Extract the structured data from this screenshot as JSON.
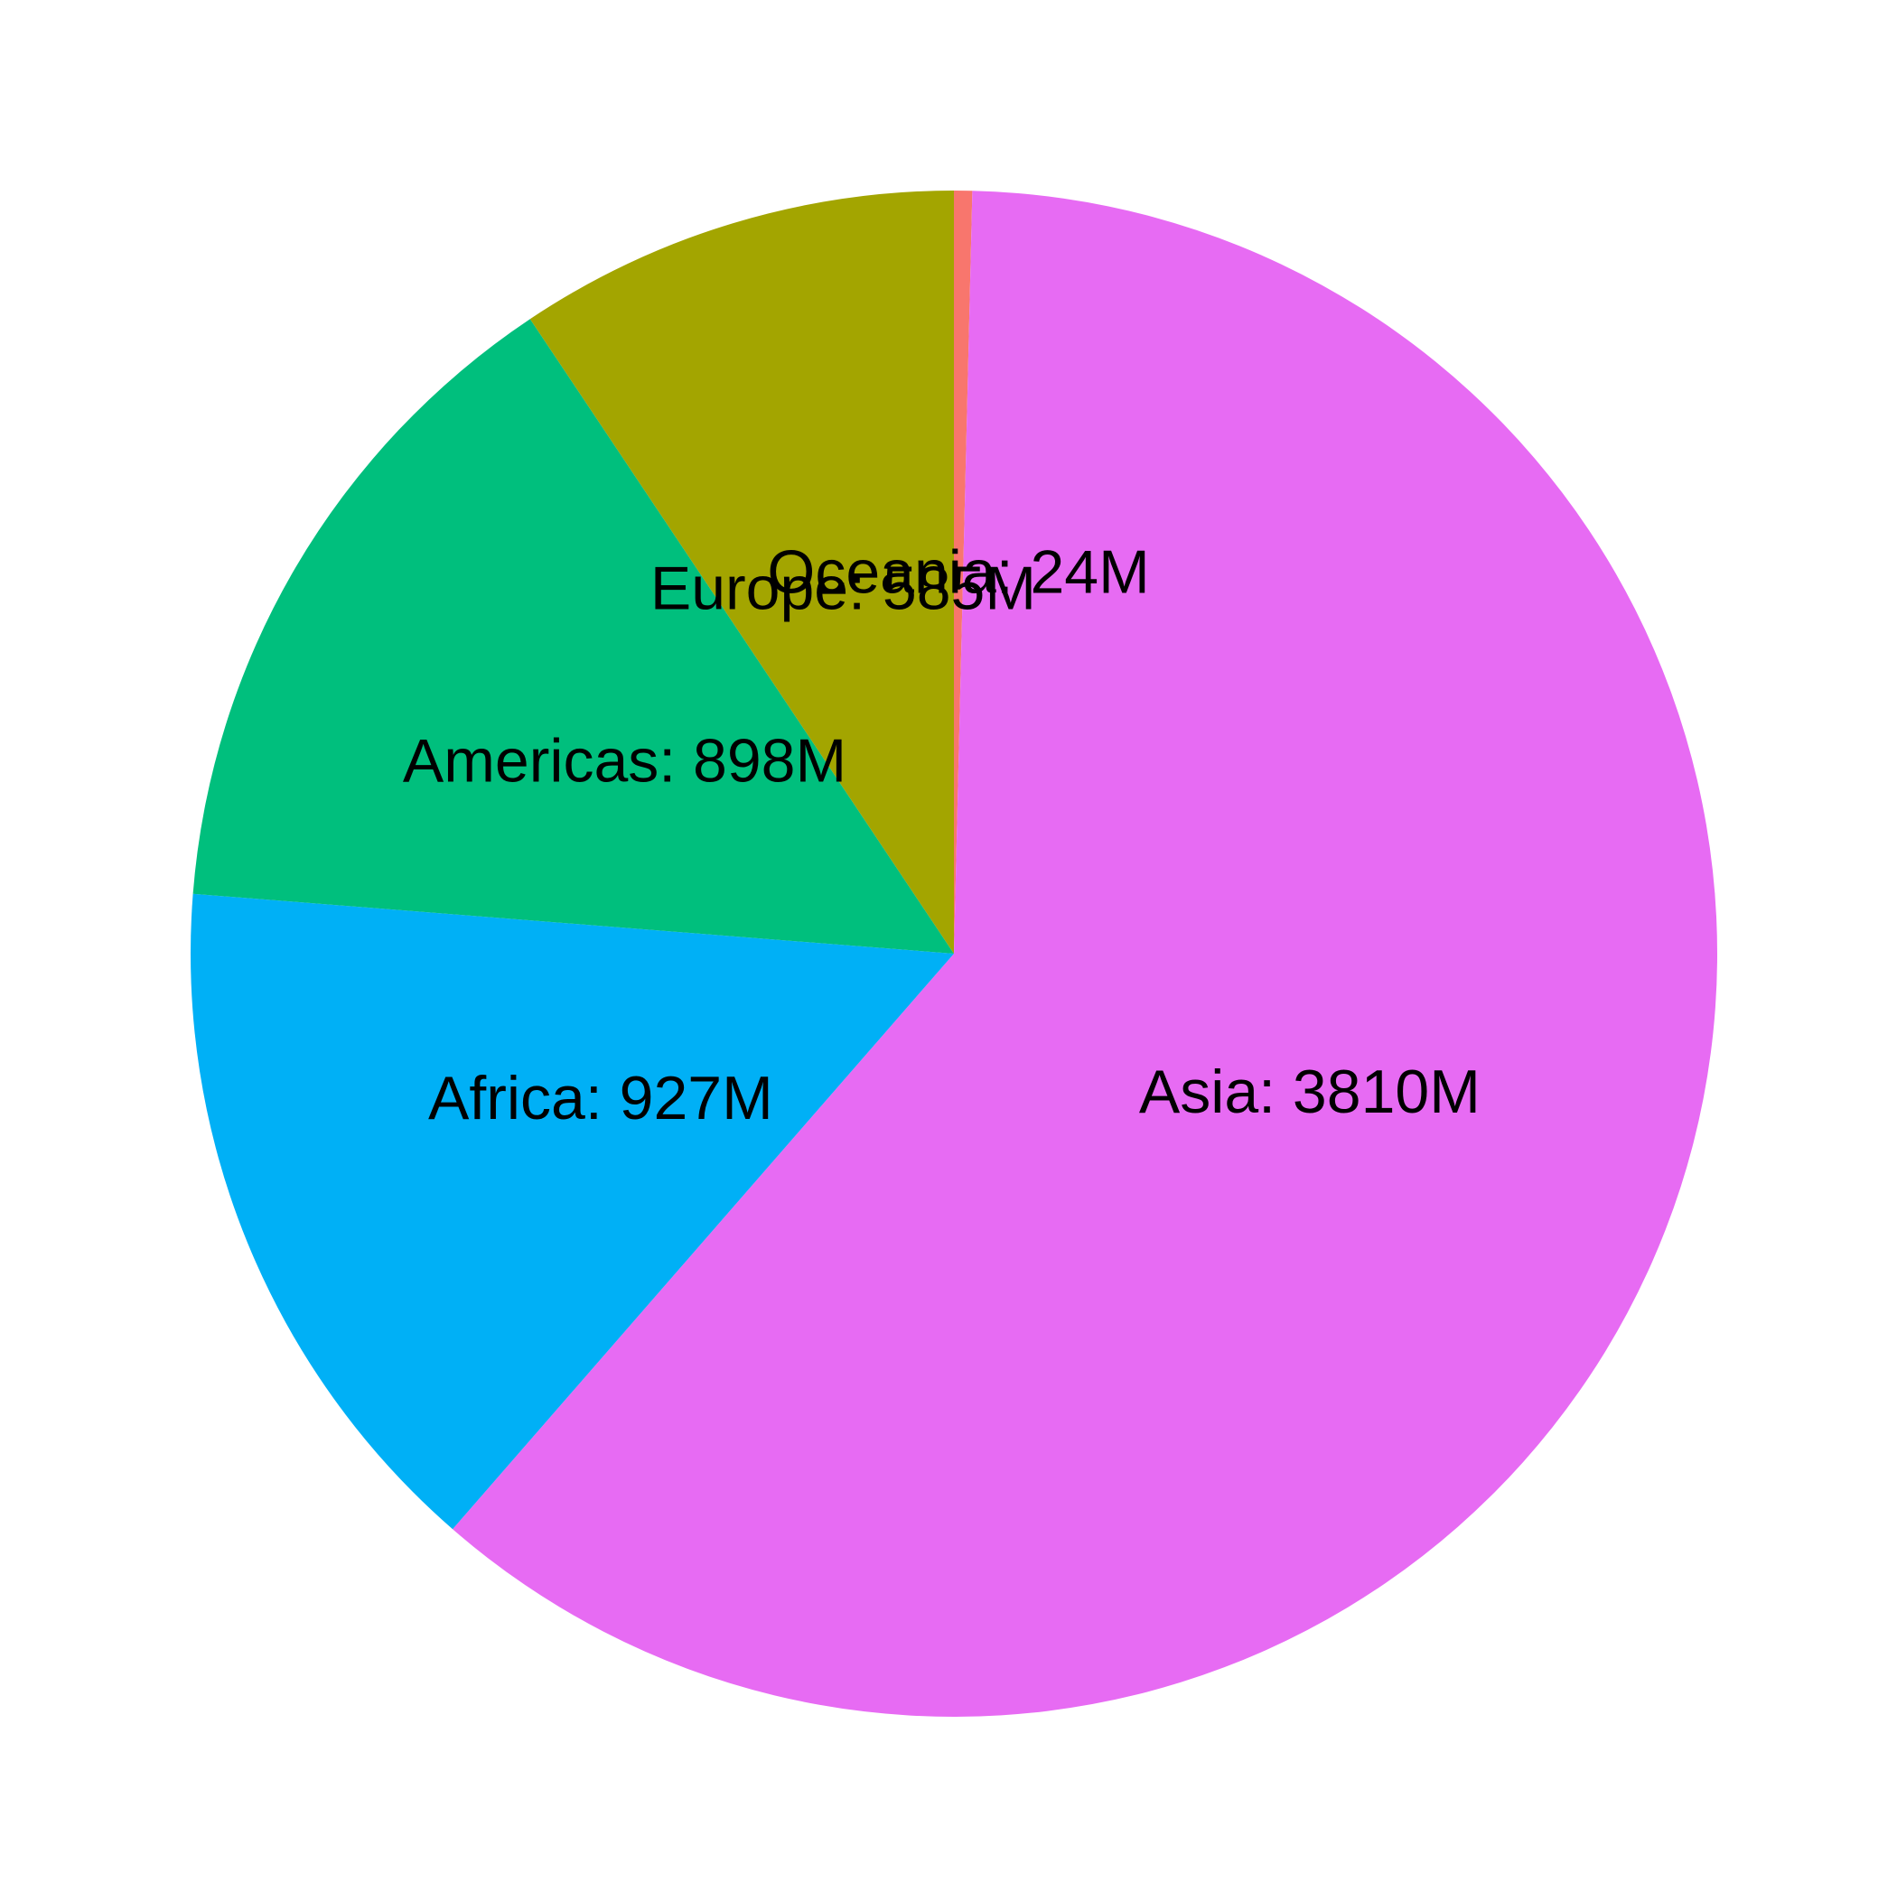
{
  "chart_data": {
    "type": "pie",
    "title": "",
    "unit": "M",
    "start_angle_deg": 0,
    "direction": "clockwise",
    "slices": [
      {
        "name": "Oceania",
        "value": 24,
        "label": "Oceania: 24M",
        "color": "#F8766D"
      },
      {
        "name": "Asia",
        "value": 3810,
        "label": "Asia: 3810M",
        "color": "#E76BF3"
      },
      {
        "name": "Africa",
        "value": 927,
        "label": "Africa: 927M",
        "color": "#00B0F6"
      },
      {
        "name": "Americas",
        "value": 898,
        "label": "Americas: 898M",
        "color": "#00BF7D"
      },
      {
        "name": "Europe",
        "value": 585,
        "label": "Europe: 585M",
        "color": "#A3A500"
      }
    ],
    "legend": "none",
    "grid": false
  }
}
